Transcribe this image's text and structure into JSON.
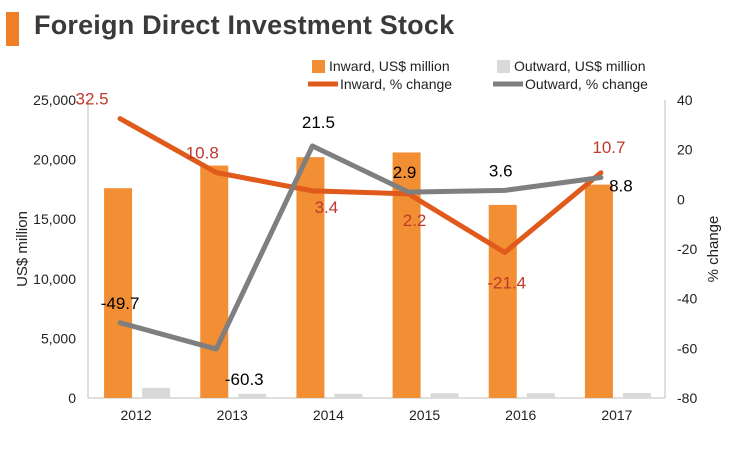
{
  "header": {
    "title": "Foreign Direct Investment Stock",
    "accent_color": "#F07E26"
  },
  "chart_data": {
    "type": "bar",
    "categories": [
      "2012",
      "2013",
      "2014",
      "2015",
      "2016",
      "2017"
    ],
    "ylabel": "US$ million",
    "y2label": "% change",
    "ylim": [
      0,
      25000
    ],
    "y2lim": [
      -80,
      40
    ],
    "yticks": [
      "0",
      "5,000",
      "10,000",
      "15,000",
      "20,000",
      "25,000"
    ],
    "y2ticks": [
      "-80",
      "-60",
      "-40",
      "-20",
      "0",
      "20",
      "40"
    ],
    "legend_position": "top",
    "series": [
      {
        "name": "Inward, US$ million",
        "type": "bar",
        "axis": "left",
        "color": "#F28E33",
        "values": [
          17600,
          19500,
          20200,
          20600,
          16200,
          17900
        ]
      },
      {
        "name": "Outward, US$ million",
        "type": "bar",
        "axis": "left",
        "color": "#D9D9D9",
        "values": [
          850,
          350,
          350,
          400,
          400,
          420
        ]
      },
      {
        "name": "Inward, % change",
        "type": "line",
        "axis": "right",
        "color": "#E05A1B",
        "label_color": "#C0392B",
        "values": [
          32.5,
          10.8,
          3.4,
          2.2,
          -21.4,
          10.7
        ],
        "labels": [
          "32.5",
          "10.8",
          "3.4",
          "2.2",
          "-21.4",
          "10.7"
        ]
      },
      {
        "name": "Outward, % change",
        "type": "line",
        "axis": "right",
        "color": "#7F7F7F",
        "label_color": "#000000",
        "values": [
          -49.7,
          -60.3,
          21.5,
          2.9,
          3.6,
          8.8
        ],
        "labels": [
          "-49.7",
          "-60.3",
          "21.5",
          "2.9",
          "3.6",
          "8.8"
        ]
      }
    ]
  }
}
